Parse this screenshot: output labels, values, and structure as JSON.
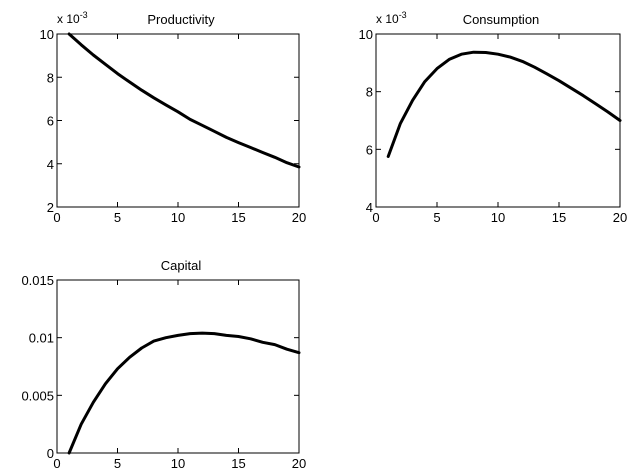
{
  "chart_data": [
    {
      "type": "line",
      "title": "Productivity",
      "xlabel": "",
      "ylabel": "",
      "multiplier": {
        "base": "x 10",
        "exponent": "-3"
      },
      "xlim": [
        0,
        20
      ],
      "ylim": [
        2,
        10
      ],
      "xticks": [
        0,
        5,
        10,
        15,
        20
      ],
      "yticks": [
        2,
        4,
        6,
        8,
        10
      ],
      "xtick_labels": [
        "0",
        "5",
        "10",
        "15",
        "20"
      ],
      "ytick_labels": [
        "2",
        "4",
        "6",
        "8",
        "10"
      ],
      "grid": false,
      "series": [
        {
          "x": [
            1,
            2,
            3,
            4,
            5,
            6,
            7,
            8,
            9,
            10,
            11,
            12,
            13,
            14,
            15,
            16,
            17,
            18,
            19,
            20
          ],
          "values": [
            10.0,
            9.5,
            9.03,
            8.6,
            8.17,
            7.78,
            7.4,
            7.05,
            6.72,
            6.4,
            6.05,
            5.78,
            5.5,
            5.22,
            4.98,
            4.75,
            4.52,
            4.3,
            4.05,
            3.85
          ]
        }
      ]
    },
    {
      "type": "line",
      "title": "Consumption",
      "xlabel": "",
      "ylabel": "",
      "multiplier": {
        "base": "x 10",
        "exponent": "-3"
      },
      "xlim": [
        0,
        20
      ],
      "ylim": [
        4,
        10
      ],
      "xticks": [
        0,
        5,
        10,
        15,
        20
      ],
      "yticks": [
        4,
        6,
        8,
        10
      ],
      "xtick_labels": [
        "0",
        "5",
        "10",
        "15",
        "20"
      ],
      "ytick_labels": [
        "4",
        "6",
        "8",
        "10"
      ],
      "grid": false,
      "series": [
        {
          "x": [
            1,
            2,
            3,
            4,
            5,
            6,
            7,
            8,
            9,
            10,
            11,
            12,
            13,
            14,
            15,
            16,
            17,
            18,
            19,
            20
          ],
          "values": [
            5.75,
            6.9,
            7.7,
            8.35,
            8.8,
            9.12,
            9.3,
            9.37,
            9.36,
            9.3,
            9.2,
            9.05,
            8.85,
            8.62,
            8.38,
            8.12,
            7.86,
            7.58,
            7.3,
            7.0
          ]
        }
      ]
    },
    {
      "type": "line",
      "title": "Capital",
      "xlabel": "",
      "ylabel": "",
      "xlim": [
        0,
        20
      ],
      "ylim": [
        0,
        0.015
      ],
      "xticks": [
        0,
        5,
        10,
        15,
        20
      ],
      "yticks": [
        0,
        0.005,
        0.01,
        0.015
      ],
      "xtick_labels": [
        "0",
        "5",
        "10",
        "15",
        "20"
      ],
      "ytick_labels": [
        "0",
        "0.005",
        "0.01",
        "0.015"
      ],
      "grid": false,
      "series": [
        {
          "x": [
            1,
            2,
            3,
            4,
            5,
            6,
            7,
            8,
            9,
            10,
            11,
            12,
            13,
            14,
            15,
            16,
            17,
            18,
            19,
            20
          ],
          "values": [
            0.0,
            0.0025,
            0.0044,
            0.006,
            0.0073,
            0.0083,
            0.0091,
            0.0097,
            0.01,
            0.0102,
            0.01035,
            0.0104,
            0.01035,
            0.0102,
            0.0101,
            0.0099,
            0.0096,
            0.0094,
            0.009,
            0.0087
          ]
        }
      ]
    }
  ]
}
